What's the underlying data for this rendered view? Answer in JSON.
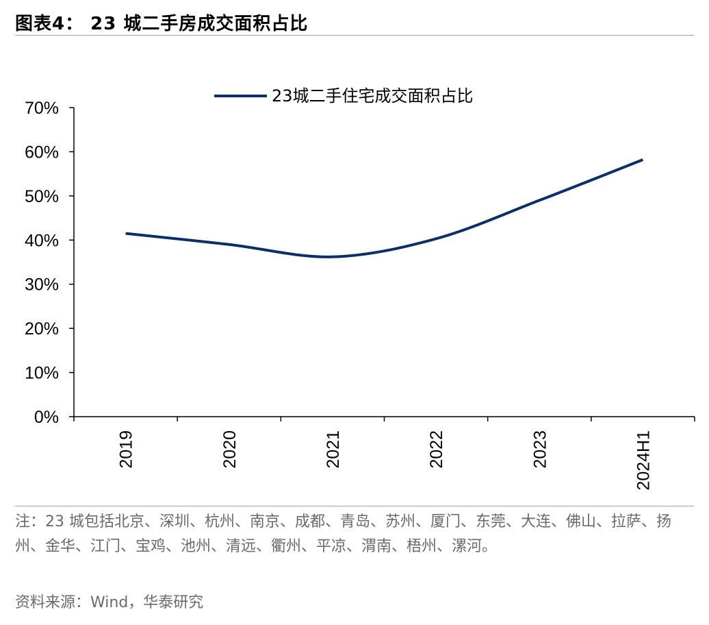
{
  "figure": {
    "title": "图表4：  23 城二手房成交面积占比",
    "note": "注：23 城包括北京、深圳、杭州、南京、成都、青岛、苏州、厦门、东莞、大连、佛山、拉萨、扬州、金华、江门、宝鸡、池州、清远、衢州、平凉、渭南、梧州、漯河。",
    "source": "资料来源：Wind，华泰研究"
  },
  "chart_data": {
    "type": "line",
    "categories": [
      "2019",
      "2020",
      "2021",
      "2022",
      "2023",
      "2024H1"
    ],
    "series": [
      {
        "name": "23城二手住宅成交面积占比",
        "values": [
          41.5,
          39.0,
          36.2,
          40.3,
          49.0,
          58.2
        ],
        "color": "#0b2f6b",
        "smooth": true
      }
    ],
    "yticks": [
      "0%",
      "10%",
      "20%",
      "30%",
      "40%",
      "50%",
      "60%",
      "70%"
    ],
    "ylim": [
      0,
      70
    ],
    "yunit": "%",
    "grid": false,
    "legend_position": "top-center",
    "xlabel": "",
    "ylabel": ""
  }
}
